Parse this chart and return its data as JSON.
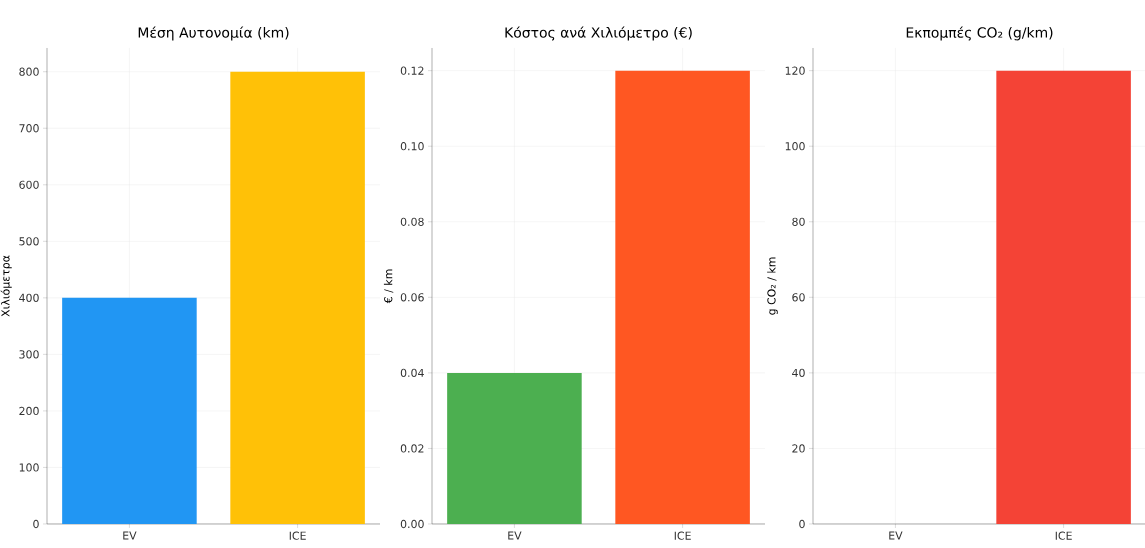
{
  "chart_data": [
    {
      "type": "bar",
      "title": "Μέση Αυτονομία (km)",
      "ylabel": "Χιλιόμετρα",
      "categories": [
        "EV",
        "ICE"
      ],
      "values": [
        400,
        800
      ],
      "colors": [
        "#2196f3",
        "#ffc107"
      ],
      "ylim": [
        0,
        842
      ],
      "yticks": [
        0,
        100,
        200,
        300,
        400,
        500,
        600,
        700,
        800
      ],
      "grid": true
    },
    {
      "type": "bar",
      "title": "Κόστος ανά Χιλιόμετρο (€)",
      "ylabel": "€ / km",
      "categories": [
        "EV",
        "ICE"
      ],
      "values": [
        0.04,
        0.12
      ],
      "colors": [
        "#4caf50",
        "#ff5722"
      ],
      "ylim": [
        0,
        0.126
      ],
      "yticks": [
        {
          "value": 0,
          "label": "0.00"
        },
        {
          "value": 0.02,
          "label": "0.02"
        },
        {
          "value": 0.04,
          "label": "0.04"
        },
        {
          "value": 0.06,
          "label": "0.06"
        },
        {
          "value": 0.08,
          "label": "0.08"
        },
        {
          "value": 0.1,
          "label": "0.10"
        },
        {
          "value": 0.12,
          "label": "0.12"
        }
      ],
      "grid": true
    },
    {
      "type": "bar",
      "title": "Εκπομπές CO₂ (g/km)",
      "ylabel": "g CO₂ / km",
      "categories": [
        "EV",
        "ICE"
      ],
      "values": [
        0,
        120
      ],
      "colors": [
        "#4caf50",
        "#f44336"
      ],
      "ylim": [
        0,
        126
      ],
      "yticks": [
        0,
        20,
        40,
        60,
        80,
        100,
        120
      ],
      "grid": true
    }
  ]
}
